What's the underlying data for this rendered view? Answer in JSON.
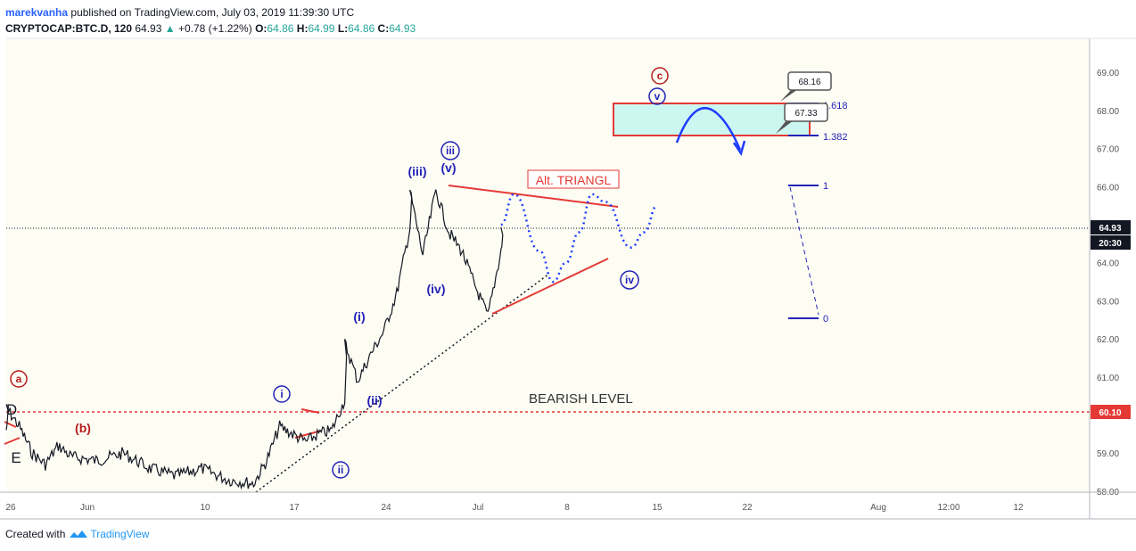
{
  "header": {
    "author": "marekvanha",
    "published": "published on TradingView.com, July 03, 2019 11:39:30 UTC",
    "symbol": "CRYPTOCAP:BTC.D, 120",
    "last": "64.93",
    "change_arrow": "▲",
    "change": "+0.78 (+1.22%)",
    "o_label": "O:",
    "o": "64.86",
    "h_label": "H:",
    "h": "64.99",
    "l_label": "L:",
    "l": "64.86",
    "c_label": "C:",
    "c": "64.93"
  },
  "footer": {
    "created_with": "Created with",
    "brand": "TradingView"
  },
  "colors": {
    "background": "#fdfdf4",
    "red": "#e53935",
    "blue": "#2323b8",
    "wave_red": "#b71c1c",
    "target_fill": "#ccf7f0"
  },
  "chart_data": {
    "type": "line",
    "ylim": [
      57.9,
      69.5
    ],
    "y_ticks": [
      "58.00",
      "59.00",
      "60.00",
      "61.00",
      "62.00",
      "63.00",
      "64.00",
      "65.00",
      "66.00",
      "67.00",
      "68.00",
      "69.00"
    ],
    "x_tick_labels": [
      "26",
      "Jun",
      "10",
      "17",
      "24",
      "Jul",
      "8",
      "15",
      "22",
      "Aug",
      "12:00",
      "12"
    ],
    "price_marker": {
      "value": 64.93,
      "label": "64.93",
      "time_label": "20:30"
    },
    "bearish_level": {
      "value": 60.1,
      "label": "60.10",
      "text": "BEARISH LEVEL"
    },
    "series": [
      {
        "points": [
          [
            "May 26",
            59.6
          ],
          [
            "May 26",
            60.2
          ],
          [
            "May 27",
            59.7
          ],
          [
            "May 28",
            59.0
          ],
          [
            "May 29",
            58.7
          ],
          [
            "May 30",
            59.2
          ],
          [
            "May 31",
            58.9
          ],
          [
            "Jun 2",
            58.8
          ],
          [
            "Jun 4",
            59.0
          ],
          [
            "Jun 6",
            58.6
          ],
          [
            "Jun 8",
            58.4
          ],
          [
            "Jun 10",
            58.6
          ],
          [
            "Jun 12",
            58.3
          ],
          [
            "Jun 14",
            58.2
          ],
          [
            "Jun 15",
            58.8
          ],
          [
            "Jun 16",
            59.7
          ],
          [
            "Jun 17",
            59.5
          ],
          [
            "Jun 18",
            59.3
          ],
          [
            "Jun 19",
            59.5
          ],
          [
            "Jun 20",
            59.6
          ],
          [
            "Jun 21",
            60.4
          ],
          [
            "Jun 21",
            61.9
          ],
          [
            "Jun 22",
            60.9
          ],
          [
            "Jun 23",
            61.6
          ],
          [
            "Jun 24",
            62.2
          ],
          [
            "Jun 25",
            63.2
          ],
          [
            "Jun 26",
            64.9
          ],
          [
            "Jun 26",
            65.9
          ],
          [
            "Jun 27",
            64.2
          ],
          [
            "Jun 28",
            65.9
          ],
          [
            "Jun 29",
            64.8
          ],
          [
            "Jun 30",
            64.3
          ],
          [
            "Jul 1",
            63.4
          ],
          [
            "Jul 2",
            62.6
          ],
          [
            "Jul 3",
            64.3
          ],
          [
            "Jul 3",
            64.93
          ]
        ]
      }
    ],
    "projection_points": [
      [
        "Jul 3",
        65.0
      ],
      [
        "Jul 4",
        65.8
      ],
      [
        "Jul 6",
        64.3
      ],
      [
        "Jul 7",
        63.5
      ],
      [
        "Jul 8",
        64.0
      ],
      [
        "Jul 9",
        64.8
      ],
      [
        "Jul 10",
        65.8
      ],
      [
        "Jul 11",
        65.6
      ],
      [
        "Jul 13",
        64.4
      ],
      [
        "Jul 14",
        64.8
      ],
      [
        "Jul 15",
        65.5
      ]
    ],
    "annotations": {
      "wave_labels": [
        "a",
        "(b)",
        "c",
        "D",
        "E",
        "i",
        "ii",
        "iii",
        "v",
        "iv",
        "(i)",
        "(ii)",
        "(iii)",
        "(iv)",
        "(v)"
      ],
      "alt_triangle": "Alt. TRIANGL",
      "target_box": {
        "top": 68.16,
        "bottom": 67.33,
        "top_label": "68.16",
        "bottom_label": "67.33"
      },
      "fib_levels": [
        {
          "label": "1.618",
          "value": 68.16
        },
        {
          "label": "1.382",
          "value": 67.33
        },
        {
          "label": "1",
          "value": 66.05
        },
        {
          "label": "0",
          "value": 62.55
        }
      ]
    }
  }
}
